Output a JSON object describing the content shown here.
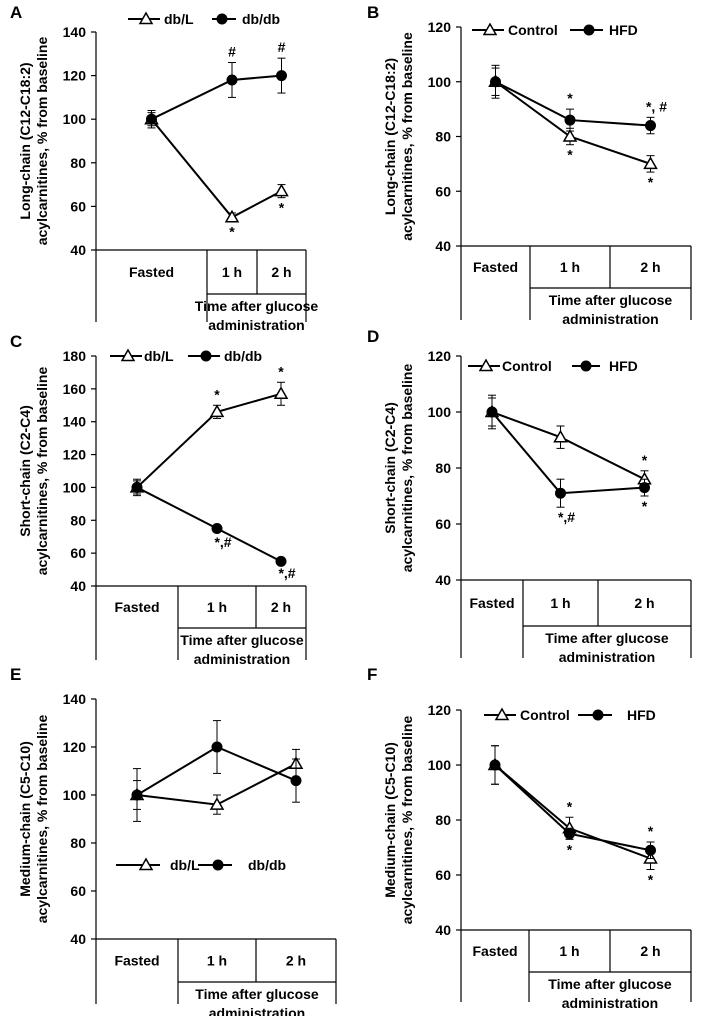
{
  "chart_data": [
    {
      "panel": "A",
      "type": "line",
      "categories": [
        "Fasted",
        "1 h",
        "2 h"
      ],
      "xlabel": "Time after glucose administration",
      "ylabel": "Long-chain (C12-C18:2) acylcarnitines, % from baseline",
      "ylim": [
        40,
        140
      ],
      "yticks": [
        40,
        60,
        80,
        100,
        120,
        140
      ],
      "legend_position": "top",
      "series": [
        {
          "name": "db/L",
          "marker": "triangle",
          "values": [
            100,
            55,
            67
          ],
          "errors": [
            3,
            2,
            3
          ],
          "annotations": [
            "",
            "*",
            "*"
          ]
        },
        {
          "name": "db/db",
          "marker": "circle",
          "values": [
            100,
            118,
            120
          ],
          "errors": [
            4,
            8,
            8
          ],
          "annotations": [
            "",
            "#",
            "#"
          ]
        }
      ]
    },
    {
      "panel": "B",
      "type": "line",
      "categories": [
        "Fasted",
        "1 h",
        "2 h"
      ],
      "xlabel": "Time after glucose administration",
      "ylabel": "Long-chain (C12-C18:2) acylcarnitines, % from baseline",
      "ylim": [
        40,
        120
      ],
      "yticks": [
        40,
        60,
        80,
        100,
        120
      ],
      "legend_position": "top",
      "series": [
        {
          "name": "Control",
          "marker": "triangle",
          "values": [
            100,
            80,
            70
          ],
          "errors": [
            6,
            3,
            3
          ],
          "annotations": [
            "",
            "*",
            "*"
          ]
        },
        {
          "name": "HFD",
          "marker": "circle",
          "values": [
            100,
            86,
            84
          ],
          "errors": [
            5,
            4,
            3
          ],
          "annotations": [
            "",
            "*",
            "*, #"
          ]
        }
      ]
    },
    {
      "panel": "C",
      "type": "line",
      "categories": [
        "Fasted",
        "1 h",
        "2 h"
      ],
      "xlabel": "Time after glucose administration",
      "ylabel": "Short-chain (C2-C4) acylcarnitines, % from baseline",
      "ylim": [
        40,
        180
      ],
      "yticks": [
        40,
        60,
        80,
        100,
        120,
        140,
        160,
        180
      ],
      "legend_position": "top",
      "series": [
        {
          "name": "db/L",
          "marker": "triangle",
          "values": [
            100,
            146,
            157
          ],
          "errors": [
            4,
            4,
            7
          ],
          "annotations": [
            "",
            "*",
            "*"
          ]
        },
        {
          "name": "db/db",
          "marker": "circle",
          "values": [
            100,
            75,
            55
          ],
          "errors": [
            5,
            2,
            1
          ],
          "annotations": [
            "",
            "*,#",
            "*,#"
          ]
        }
      ]
    },
    {
      "panel": "D",
      "type": "line",
      "categories": [
        "Fasted",
        "1 h",
        "2 h"
      ],
      "xlabel": "Time after glucose administration",
      "ylabel": "Short-chain (C2-C4) acylcarnitines, % from baseline",
      "ylim": [
        40,
        120
      ],
      "yticks": [
        40,
        60,
        80,
        100,
        120
      ],
      "legend_position": "top",
      "series": [
        {
          "name": "Control",
          "marker": "triangle",
          "values": [
            100,
            91,
            76
          ],
          "errors": [
            6,
            4,
            3
          ],
          "annotations": [
            "",
            "",
            "*"
          ]
        },
        {
          "name": "HFD",
          "marker": "circle",
          "values": [
            100,
            71,
            73
          ],
          "errors": [
            5,
            5,
            3
          ],
          "annotations": [
            "",
            "*,#",
            "*"
          ]
        }
      ]
    },
    {
      "panel": "E",
      "type": "line",
      "categories": [
        "Fasted",
        "1 h",
        "2 h"
      ],
      "xlabel": "Time after glucose administration",
      "ylabel": "Medium-chain (C5-C10) acylcarnitines, % from baseline",
      "ylim": [
        40,
        140
      ],
      "yticks": [
        40,
        60,
        80,
        100,
        120,
        140
      ],
      "legend_position": "bottom",
      "series": [
        {
          "name": "db/L",
          "marker": "triangle",
          "values": [
            100,
            96,
            113
          ],
          "errors": [
            11,
            4,
            6
          ],
          "annotations": [
            "",
            "",
            ""
          ]
        },
        {
          "name": "db/db",
          "marker": "circle",
          "values": [
            100,
            120,
            106
          ],
          "errors": [
            6,
            11,
            9
          ],
          "annotations": [
            "",
            "",
            ""
          ]
        }
      ]
    },
    {
      "panel": "F",
      "type": "line",
      "categories": [
        "Fasted",
        "1 h",
        "2 h"
      ],
      "xlabel": "Time after glucose administration",
      "ylabel": "Medium-chain (C5-C10) acylcarnitines, % from baseline",
      "ylim": [
        40,
        120
      ],
      "yticks": [
        40,
        60,
        80,
        100,
        120
      ],
      "legend_position": "top",
      "series": [
        {
          "name": "Control",
          "marker": "triangle",
          "values": [
            100,
            77,
            66
          ],
          "errors": [
            7,
            4,
            4
          ],
          "annotations": [
            "",
            "*",
            "*"
          ]
        },
        {
          "name": "HFD",
          "marker": "circle",
          "values": [
            100,
            75,
            69
          ],
          "errors": [
            7,
            2,
            3
          ],
          "annotations": [
            "",
            "*",
            "*"
          ]
        }
      ]
    }
  ]
}
